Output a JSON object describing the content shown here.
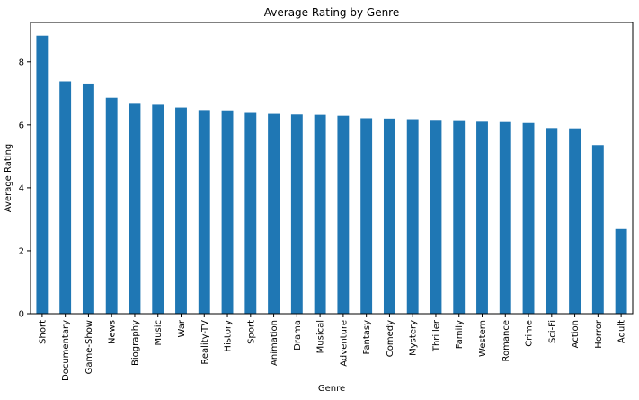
{
  "chart_data": {
    "type": "bar",
    "title": "Average Rating by Genre",
    "xlabel": "Genre",
    "ylabel": "Average Rating",
    "ylim": [
      0,
      9.25
    ],
    "yticks": [
      0,
      2,
      4,
      6,
      8
    ],
    "grid": false,
    "legend": "none",
    "bar_color": "#1f77b4",
    "categories": [
      "Short",
      "Documentary",
      "Game-Show",
      "News",
      "Biography",
      "Music",
      "War",
      "Reality-TV",
      "History",
      "Sport",
      "Animation",
      "Drama",
      "Musical",
      "Adventure",
      "Fantasy",
      "Comedy",
      "Mystery",
      "Thriller",
      "Family",
      "Western",
      "Romance",
      "Crime",
      "Sci-Fi",
      "Action",
      "Horror",
      "Adult"
    ],
    "values": [
      8.83,
      7.38,
      7.31,
      6.86,
      6.67,
      6.64,
      6.55,
      6.47,
      6.46,
      6.38,
      6.35,
      6.33,
      6.32,
      6.29,
      6.21,
      6.2,
      6.18,
      6.13,
      6.12,
      6.1,
      6.09,
      6.06,
      5.9,
      5.89,
      5.36,
      2.69
    ]
  }
}
